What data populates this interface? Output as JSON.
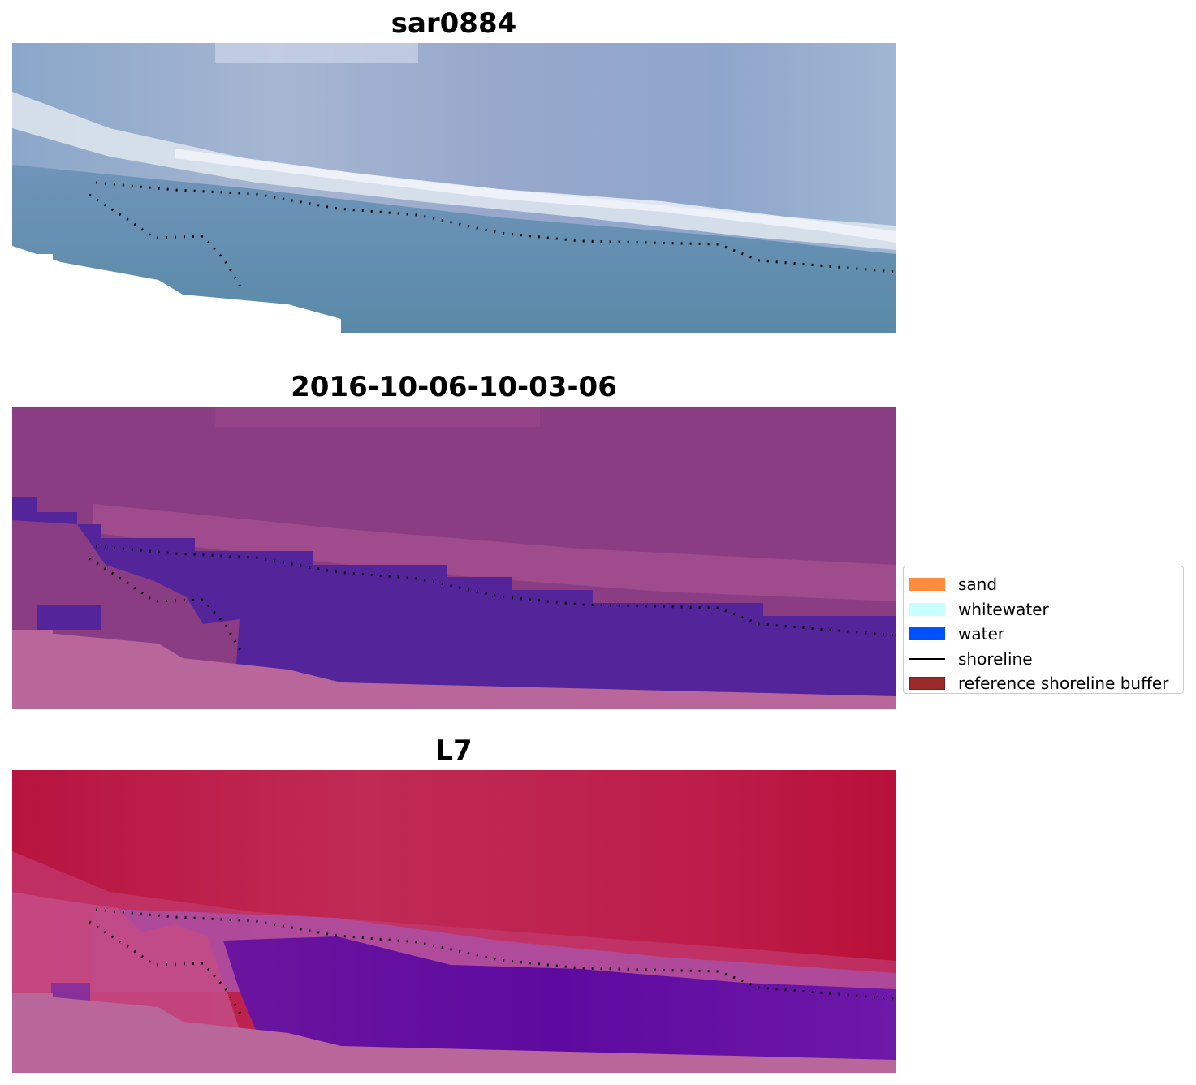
{
  "panels": [
    {
      "title": "sar0884"
    },
    {
      "title": "2016-10-06-10-03-06"
    },
    {
      "title": "L7"
    }
  ],
  "legend": {
    "items": [
      {
        "label": "sand",
        "color": "#ff8c3c",
        "kind": "patch"
      },
      {
        "label": "whitewater",
        "color": "#c8ffff",
        "kind": "patch"
      },
      {
        "label": "water",
        "color": "#0050ff",
        "kind": "patch"
      },
      {
        "label": "shoreline",
        "color": "#000000",
        "kind": "line"
      },
      {
        "label": "reference shoreline buffer",
        "color": "#9b2a2a",
        "kind": "patch"
      }
    ]
  }
}
